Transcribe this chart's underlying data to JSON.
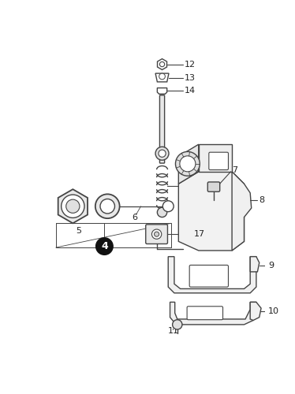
{
  "bg_color": "#ffffff",
  "line_color": "#444444",
  "label_color": "#222222",
  "fig_width": 3.74,
  "fig_height": 5.0,
  "dpi": 100
}
